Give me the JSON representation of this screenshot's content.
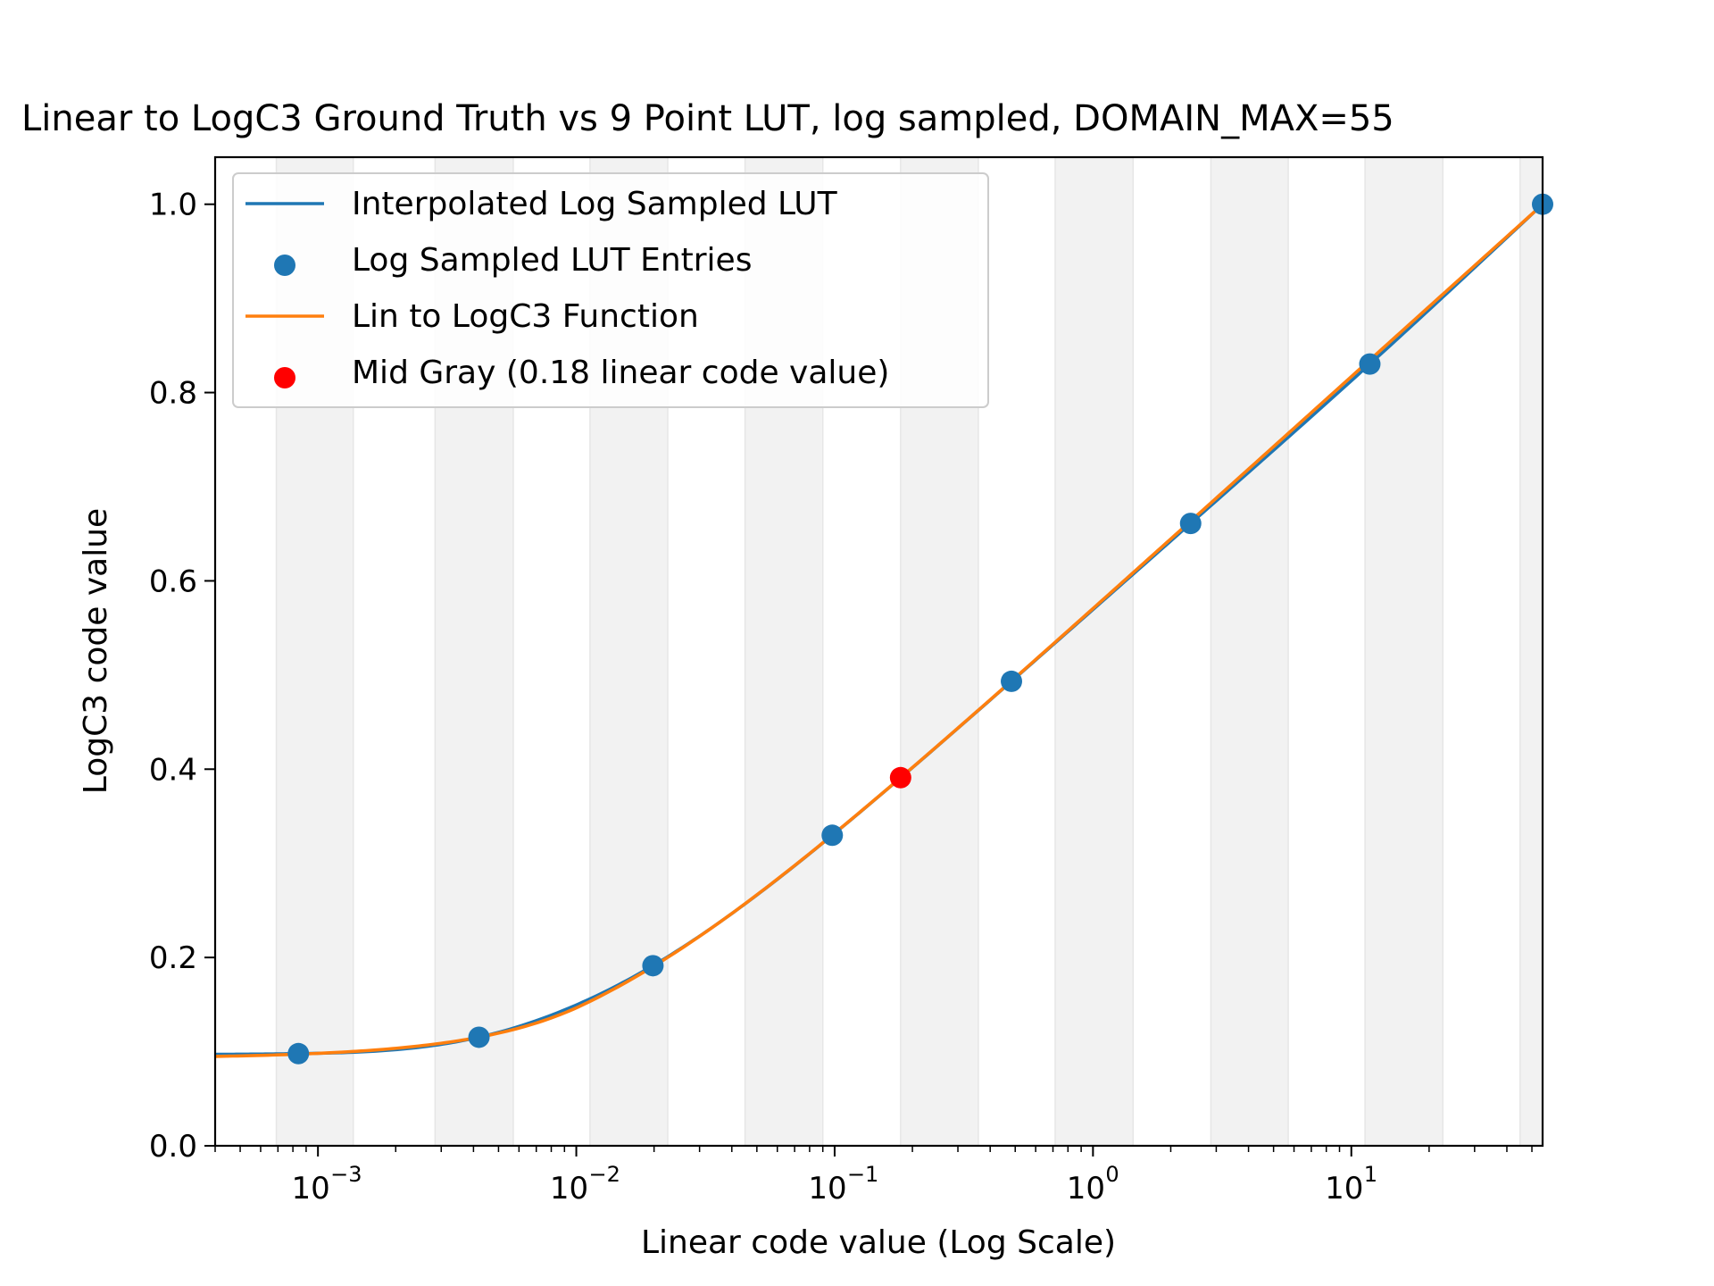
{
  "chart_data": {
    "type": "line",
    "title": "Linear to LogC3 Ground Truth vs 9 Point LUT, log sampled, DOMAIN_MAX=55",
    "xlabel": "Linear code value (Log Scale)",
    "ylabel": "LogC3 code value",
    "xscale": "log",
    "xlim": [
      0.0004,
      55
    ],
    "ylim": [
      0.0,
      1.05
    ],
    "xticks": [
      {
        "value": 0.001,
        "base": "10",
        "exp": "−3"
      },
      {
        "value": 0.01,
        "base": "10",
        "exp": "−2"
      },
      {
        "value": 0.1,
        "base": "10",
        "exp": "−1"
      },
      {
        "value": 1,
        "base": "10",
        "exp": "0"
      },
      {
        "value": 10,
        "base": "10",
        "exp": "1"
      }
    ],
    "yticks": [
      {
        "value": 0.0,
        "label": "0.0"
      },
      {
        "value": 0.2,
        "label": "0.2"
      },
      {
        "value": 0.4,
        "label": "0.4"
      },
      {
        "value": 0.6,
        "label": "0.6"
      },
      {
        "value": 0.8,
        "label": "0.8"
      },
      {
        "value": 1.0,
        "label": "1.0"
      }
    ],
    "shaded_bands": [
      [
        0.00069,
        0.00137
      ],
      [
        0.00284,
        0.0057
      ],
      [
        0.0113,
        0.0226
      ],
      [
        0.045,
        0.09
      ],
      [
        0.18,
        0.36
      ],
      [
        0.714,
        1.43
      ],
      [
        2.86,
        5.7
      ],
      [
        11.3,
        22.6
      ],
      [
        45.0,
        55.0
      ]
    ],
    "series": [
      {
        "name": "Interpolated Log Sampled LUT",
        "kind": "line",
        "color": "#1f77b4",
        "x": [
          0.0004,
          0.00084,
          0.0042,
          0.0198,
          0.0979,
          0.4835,
          2.3878,
          11.7923,
          55.0
        ],
        "y": [
          0.0971,
          0.0979,
          0.1153,
          0.1913,
          0.3298,
          0.4933,
          0.661,
          0.8303,
          1.0
        ]
      },
      {
        "name": "Log Sampled LUT Entries",
        "kind": "scatter",
        "color": "#1f77b4",
        "x": [
          0.00084,
          0.0042,
          0.0198,
          0.0979,
          0.4835,
          2.3878,
          11.7923,
          55.0
        ],
        "y": [
          0.0979,
          0.1153,
          0.1913,
          0.3298,
          0.4933,
          0.661,
          0.8303,
          1.0
        ]
      },
      {
        "name": "Lin to LogC3 Function",
        "kind": "line",
        "color": "#ff7f0e",
        "x": [
          0.0004,
          55
        ],
        "y": [
          0.0971,
          1.0
        ]
      },
      {
        "name": "Mid Gray (0.18 linear code value)",
        "kind": "scatter",
        "color": "#ff0000",
        "x": [
          0.18
        ],
        "y": [
          0.391
        ]
      }
    ],
    "legend": {
      "position": "top-left",
      "entries": [
        "Interpolated Log Sampled LUT",
        "Log Sampled LUT Entries",
        "Lin to LogC3 Function",
        "Mid Gray (0.18 linear code value)"
      ]
    },
    "grid": false
  }
}
